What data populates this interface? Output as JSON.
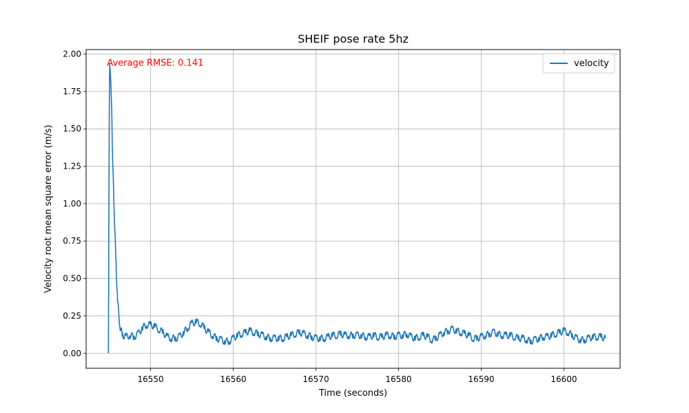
{
  "chart_data": {
    "type": "line",
    "title": "SHEIF pose rate 5hz",
    "xlabel": "Time (seconds)",
    "ylabel": "Velocity root mean square error (m/s)",
    "xlim": [
      16542.2,
      16606.8
    ],
    "ylim": [
      -0.1,
      2.03
    ],
    "xticks": [
      16550,
      16560,
      16570,
      16580,
      16590,
      16600
    ],
    "xtick_labels": [
      "16550",
      "16560",
      "16570",
      "16580",
      "16590",
      "16600"
    ],
    "yticks": [
      0.0,
      0.25,
      0.5,
      0.75,
      1.0,
      1.25,
      1.5,
      1.75,
      2.0
    ],
    "ytick_labels": [
      "0.00",
      "0.25",
      "0.50",
      "0.75",
      "1.00",
      "1.25",
      "1.50",
      "1.75",
      "2.00"
    ],
    "grid": true,
    "legend_position": "top-right",
    "annotation": {
      "text": "Average RMSE: 0.141",
      "x": 16544.9,
      "y": 1.93,
      "color": "#ff0000"
    },
    "series": [
      {
        "name": "velocity",
        "color": "#1f77b4",
        "noise_band": 0.025,
        "x": [
          16544.9,
          16544.95,
          16545.0,
          16545.05,
          16545.1,
          16545.2,
          16545.3,
          16545.4,
          16545.6,
          16545.8,
          16546.0,
          16546.3,
          16546.6,
          16547.0,
          16547.5,
          16548.0,
          16548.5,
          16549.0,
          16549.5,
          16550.0,
          16550.5,
          16551.0,
          16551.5,
          16552.0,
          16552.5,
          16553.0,
          16553.5,
          16554.0,
          16554.5,
          16555.0,
          16555.5,
          16556.0,
          16556.5,
          16557.0,
          16557.5,
          16558.0,
          16558.5,
          16559.0,
          16559.5,
          16560.0,
          16560.5,
          16561.0,
          16561.5,
          16562.0,
          16562.5,
          16563.0,
          16563.5,
          16564.0,
          16564.5,
          16565.0,
          16565.5,
          16566.0,
          16566.5,
          16567.0,
          16567.5,
          16568.0,
          16568.5,
          16569.0,
          16569.5,
          16570.0,
          16570.5,
          16571.0,
          16571.5,
          16572.0,
          16572.5,
          16573.0,
          16573.5,
          16574.0,
          16574.5,
          16575.0,
          16575.5,
          16576.0,
          16576.5,
          16577.0,
          16577.5,
          16578.0,
          16578.5,
          16579.0,
          16579.5,
          16580.0,
          16580.5,
          16581.0,
          16581.5,
          16582.0,
          16582.5,
          16583.0,
          16583.5,
          16584.0,
          16584.5,
          16585.0,
          16585.5,
          16586.0,
          16586.5,
          16587.0,
          16587.5,
          16588.0,
          16588.5,
          16589.0,
          16589.5,
          16590.0,
          16590.5,
          16591.0,
          16591.5,
          16592.0,
          16592.5,
          16593.0,
          16593.5,
          16594.0,
          16594.5,
          16595.0,
          16595.5,
          16596.0,
          16596.5,
          16597.0,
          16597.5,
          16598.0,
          16598.5,
          16599.0,
          16599.5,
          16600.0,
          16600.5,
          16601.0,
          16601.5,
          16602.0,
          16602.5,
          16603.0,
          16603.5,
          16604.0,
          16604.5,
          16605.0
        ],
        "y": [
          0.0,
          0.9,
          1.6,
          1.93,
          1.9,
          1.8,
          1.6,
          1.3,
          0.95,
          0.62,
          0.35,
          0.18,
          0.12,
          0.11,
          0.12,
          0.11,
          0.13,
          0.17,
          0.19,
          0.19,
          0.18,
          0.16,
          0.14,
          0.11,
          0.1,
          0.1,
          0.11,
          0.14,
          0.17,
          0.2,
          0.21,
          0.2,
          0.17,
          0.14,
          0.12,
          0.1,
          0.09,
          0.08,
          0.08,
          0.1,
          0.12,
          0.13,
          0.14,
          0.15,
          0.14,
          0.13,
          0.12,
          0.11,
          0.1,
          0.1,
          0.1,
          0.1,
          0.11,
          0.12,
          0.13,
          0.14,
          0.13,
          0.12,
          0.11,
          0.1,
          0.1,
          0.1,
          0.11,
          0.12,
          0.12,
          0.13,
          0.12,
          0.12,
          0.12,
          0.12,
          0.12,
          0.11,
          0.11,
          0.12,
          0.11,
          0.11,
          0.12,
          0.12,
          0.11,
          0.12,
          0.12,
          0.13,
          0.11,
          0.1,
          0.11,
          0.12,
          0.11,
          0.09,
          0.1,
          0.12,
          0.14,
          0.15,
          0.16,
          0.15,
          0.14,
          0.13,
          0.12,
          0.1,
          0.1,
          0.11,
          0.12,
          0.13,
          0.14,
          0.13,
          0.12,
          0.12,
          0.12,
          0.11,
          0.1,
          0.1,
          0.09,
          0.08,
          0.09,
          0.1,
          0.11,
          0.11,
          0.12,
          0.13,
          0.14,
          0.15,
          0.14,
          0.12,
          0.1,
          0.09,
          0.09,
          0.1,
          0.11,
          0.11,
          0.11,
          0.1
        ]
      }
    ]
  }
}
